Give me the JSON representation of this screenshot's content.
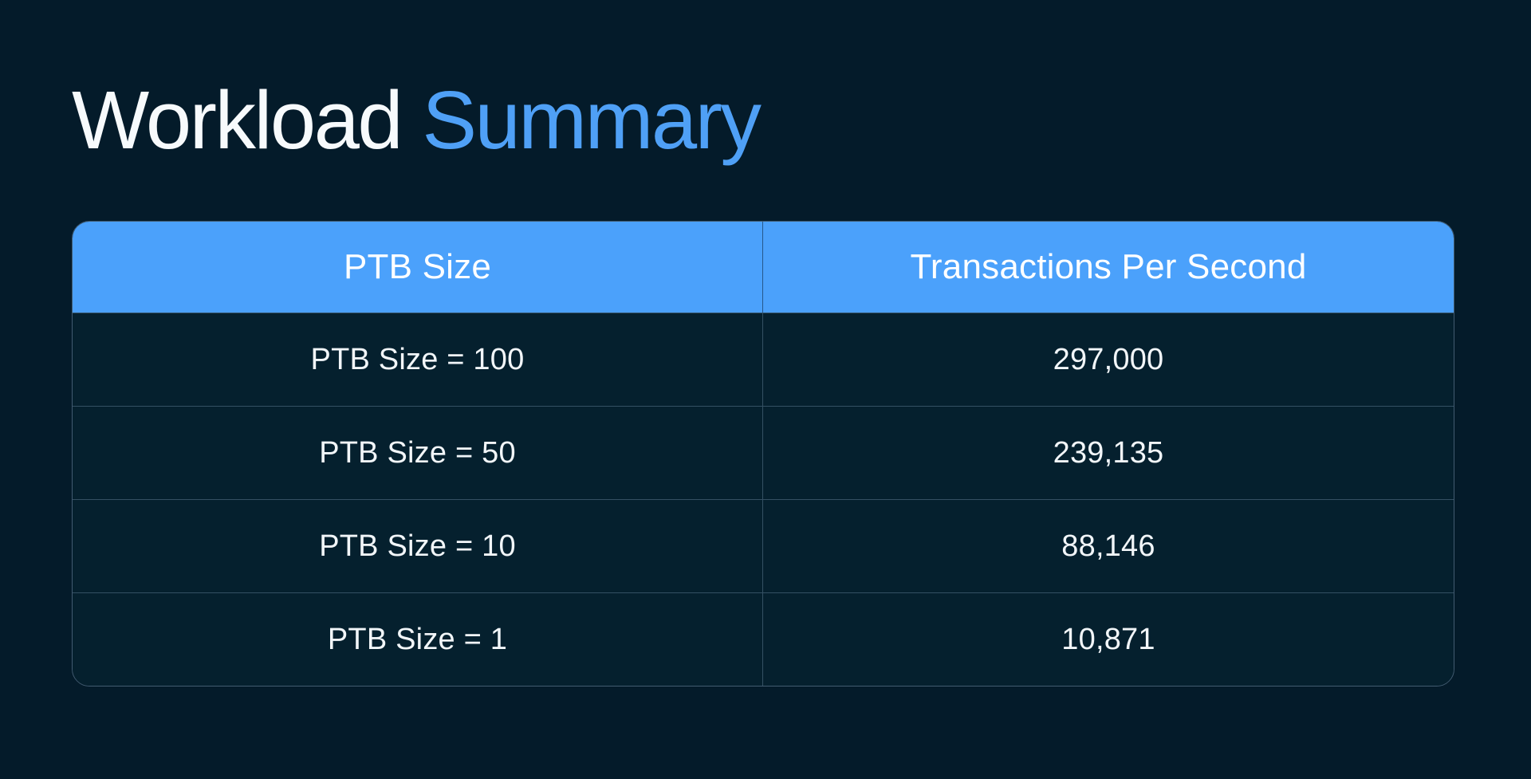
{
  "page": {
    "background_color": "#041B2A",
    "accent_color": "#4FA0F6",
    "header_blue": "#4BA1FB",
    "text_color": "#F2F6F9"
  },
  "title": {
    "primary": "Workload",
    "accent": "Summary"
  },
  "table": {
    "header": {
      "col1": "PTB Size",
      "col2": "Transactions Per Second"
    },
    "rows": [
      {
        "label": "PTB Size = 100",
        "tps": "297,000"
      },
      {
        "label": "PTB Size = 50",
        "tps": "239,135"
      },
      {
        "label": "PTB Size = 10",
        "tps": "88,146"
      },
      {
        "label": "PTB Size = 1",
        "tps": "10,871"
      }
    ]
  },
  "chart_data": {
    "type": "table",
    "title": "Workload Summary",
    "columns": [
      "PTB Size",
      "Transactions Per Second"
    ],
    "categories": [
      "PTB Size = 100",
      "PTB Size = 50",
      "PTB Size = 10",
      "PTB Size = 1"
    ],
    "values": [
      297000,
      239135,
      88146,
      10871
    ]
  }
}
